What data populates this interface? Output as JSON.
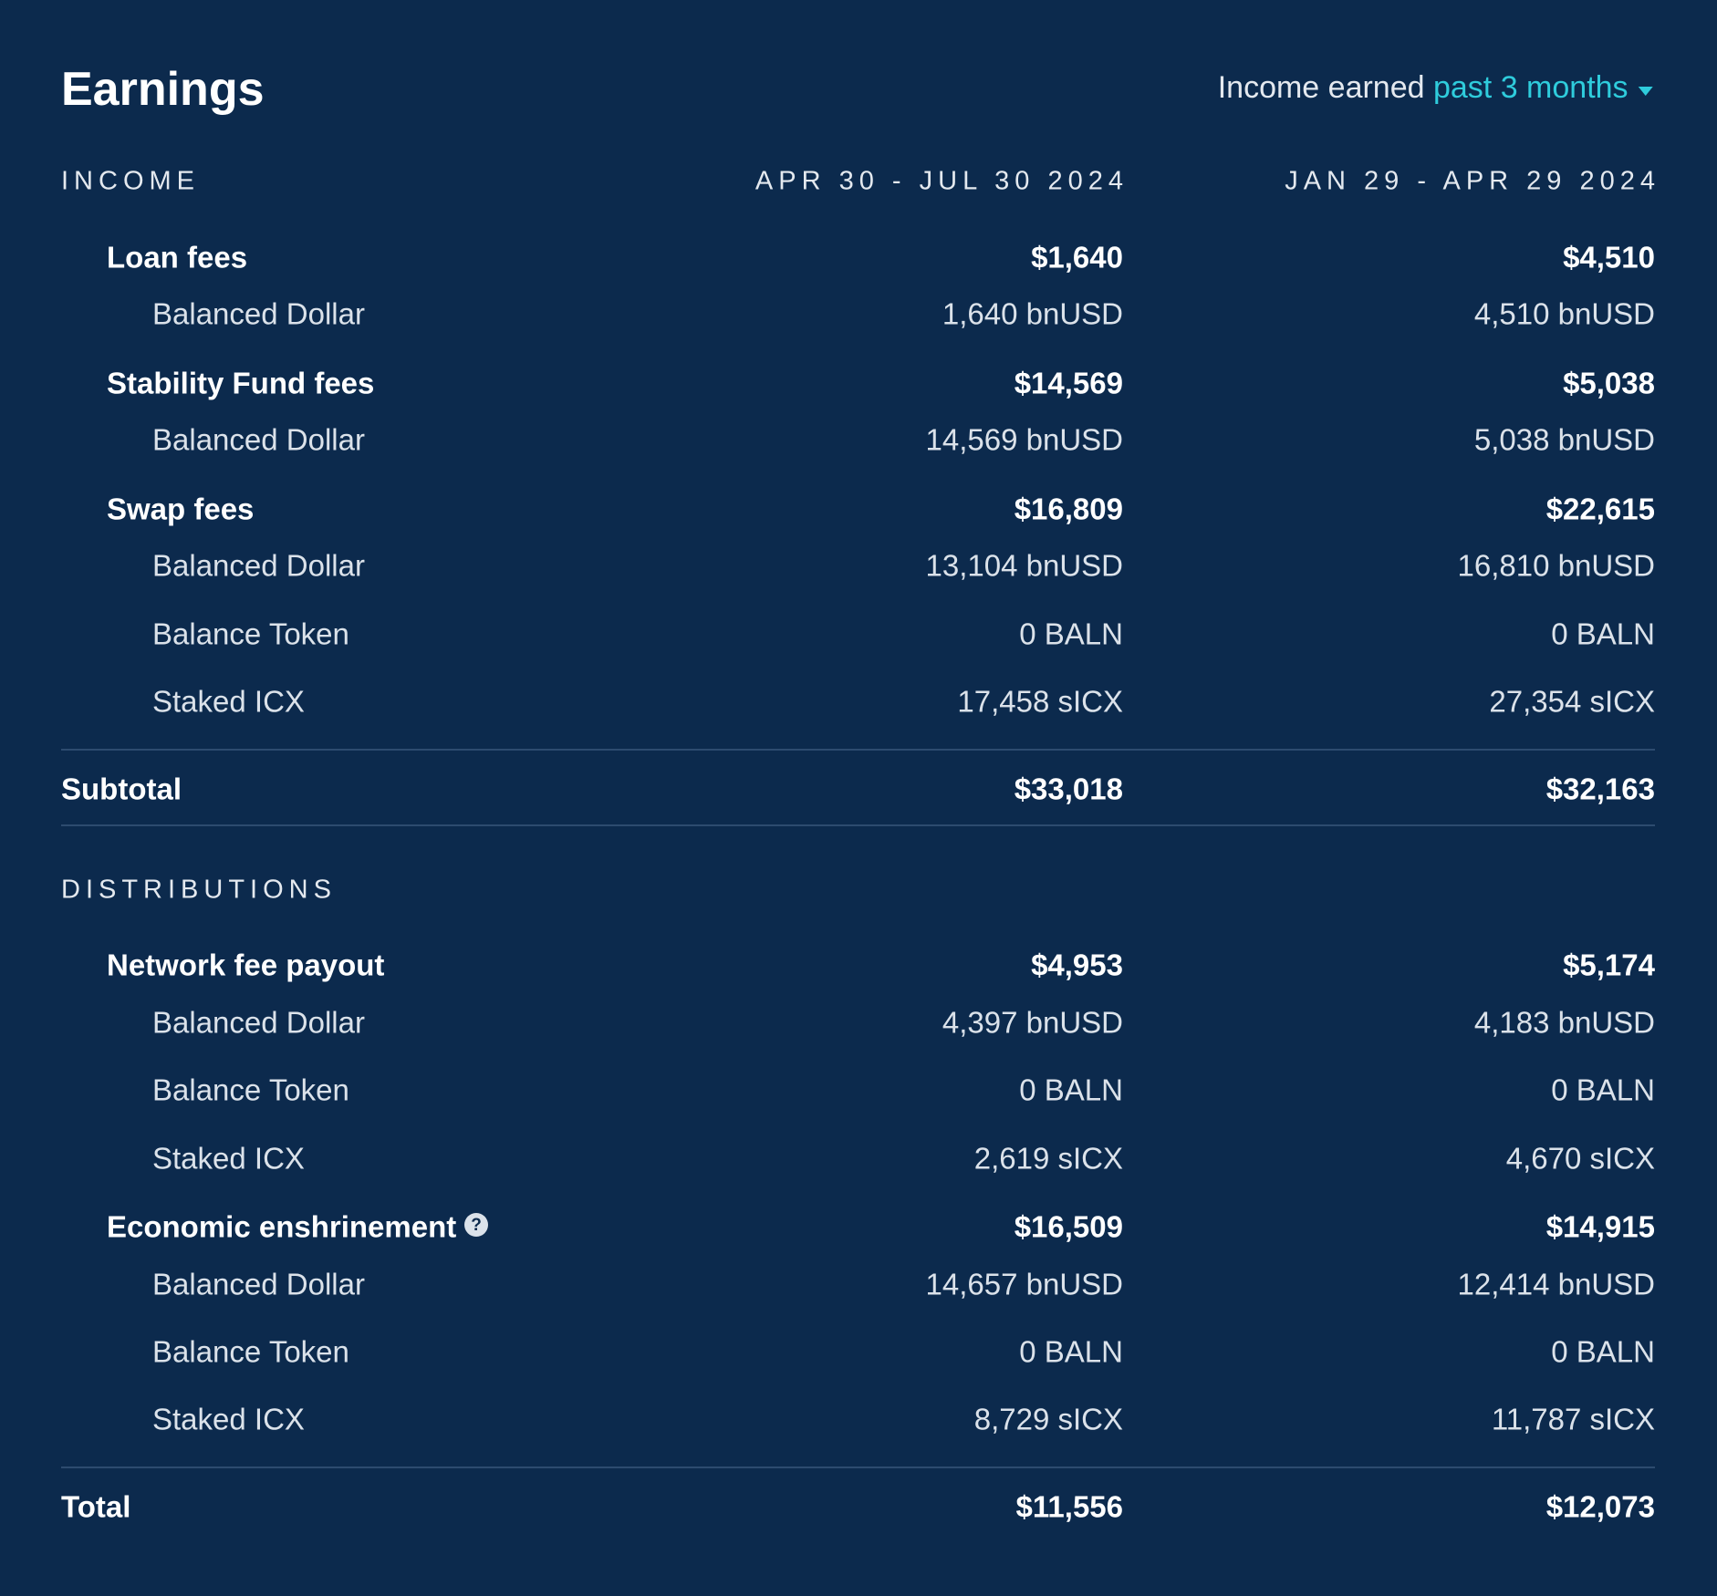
{
  "header": {
    "title": "Earnings",
    "filter_label": "Income earned",
    "filter_value": "past 3 months"
  },
  "sections": [
    {
      "heading": "INCOME",
      "periods": [
        "APR 30 - JUL 30 2024",
        "JAN 29 - APR 29 2024"
      ],
      "groups": [
        {
          "name": "Loan fees",
          "values": [
            "$1,640",
            "$4,510"
          ],
          "items": [
            {
              "name": "Balanced Dollar",
              "values": [
                "1,640 bnUSD",
                "4,510 bnUSD"
              ]
            }
          ]
        },
        {
          "name": "Stability Fund fees",
          "values": [
            "$14,569",
            "$5,038"
          ],
          "items": [
            {
              "name": "Balanced Dollar",
              "values": [
                "14,569 bnUSD",
                "5,038 bnUSD"
              ]
            }
          ]
        },
        {
          "name": "Swap fees",
          "values": [
            "$16,809",
            "$22,615"
          ],
          "items": [
            {
              "name": "Balanced Dollar",
              "values": [
                "13,104 bnUSD",
                "16,810 bnUSD"
              ]
            },
            {
              "name": "Balance Token",
              "values": [
                "0 BALN",
                "0 BALN"
              ]
            },
            {
              "name": "Staked ICX",
              "values": [
                "17,458 sICX",
                "27,354 sICX"
              ]
            }
          ]
        }
      ],
      "total": {
        "name": "Subtotal",
        "values": [
          "$33,018",
          "$32,163"
        ]
      }
    },
    {
      "heading": "DISTRIBUTIONS",
      "groups": [
        {
          "name": "Network fee payout",
          "values": [
            "$4,953",
            "$5,174"
          ],
          "items": [
            {
              "name": "Balanced Dollar",
              "values": [
                "4,397 bnUSD",
                "4,183 bnUSD"
              ]
            },
            {
              "name": "Balance Token",
              "values": [
                "0 BALN",
                "0 BALN"
              ]
            },
            {
              "name": "Staked ICX",
              "values": [
                "2,619 sICX",
                "4,670 sICX"
              ]
            }
          ]
        },
        {
          "name": "Economic enshrinement",
          "values": [
            "$16,509",
            "$14,915"
          ],
          "items": [
            {
              "name": "Balanced Dollar",
              "values": [
                "14,657 bnUSD",
                "12,414 bnUSD"
              ]
            },
            {
              "name": "Balance Token",
              "values": [
                "0 BALN",
                "0 BALN"
              ]
            },
            {
              "name": "Staked ICX",
              "values": [
                "8,729 sICX",
                "11,787 sICX"
              ]
            }
          ]
        }
      ],
      "total": {
        "name": "Total",
        "values": [
          "$11,556",
          "$12,073"
        ]
      }
    }
  ]
}
